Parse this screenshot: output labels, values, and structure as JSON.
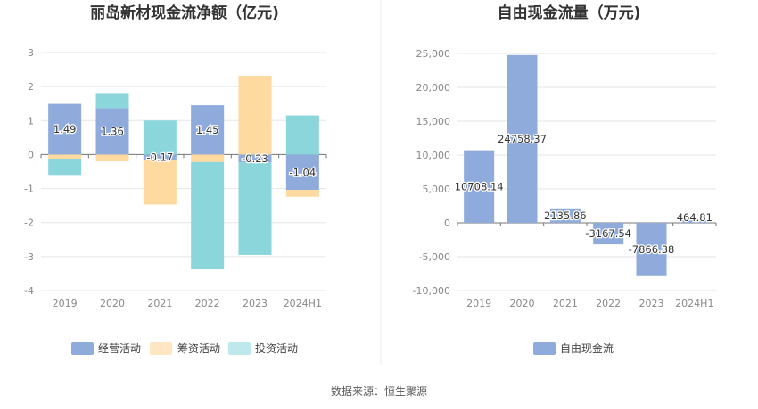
{
  "chart_data": [
    {
      "type": "bar",
      "stacked": true,
      "title": "丽岛新材现金流净额（亿元)",
      "categories": [
        "2019",
        "2020",
        "2021",
        "2022",
        "2023",
        "2024H1"
      ],
      "yticks": [
        "3",
        "2",
        "1",
        "0",
        "-1",
        "-2",
        "-3",
        "-4"
      ],
      "ylim": [
        -4,
        3
      ],
      "grid": true,
      "legend_position": "bottom",
      "series": [
        {
          "name": "经营活动",
          "color": "#8eabdb",
          "values": [
            1.49,
            1.36,
            -0.17,
            1.45,
            -0.23,
            -1.04
          ]
        },
        {
          "name": "筹资活动",
          "color": "#fed9a0",
          "values": [
            -0.12,
            -0.2,
            -1.3,
            -0.22,
            2.32,
            -0.2
          ]
        },
        {
          "name": "投资活动",
          "color": "#8ad6db",
          "values": [
            -0.48,
            0.45,
            1.0,
            -3.15,
            -2.72,
            1.15
          ]
        }
      ],
      "data_labels": [
        "1.49",
        "1.36",
        "-0.17",
        "1.45",
        "-0.23",
        "-1.04"
      ]
    },
    {
      "type": "bar",
      "title": "自由现金流量（万元)",
      "categories": [
        "2019",
        "2020",
        "2021",
        "2022",
        "2023",
        "2024H1"
      ],
      "yticks": [
        "25,000",
        "20,000",
        "15,000",
        "10,000",
        "5,000",
        "0",
        "-5,000",
        "-10,000"
      ],
      "ylim": [
        -10000,
        25000
      ],
      "grid": true,
      "legend_position": "bottom",
      "series": [
        {
          "name": "自由现金流",
          "color": "#8eabdb",
          "values": [
            10708.14,
            24758.37,
            2135.86,
            -3167.54,
            -7866.38,
            464.81
          ]
        }
      ],
      "data_labels": [
        "10708.14",
        "24758.37",
        "2135.86",
        "-3167.54",
        "-7866.38",
        "464.81"
      ]
    }
  ],
  "footer": {
    "source": "数据来源：恒生聚源"
  }
}
